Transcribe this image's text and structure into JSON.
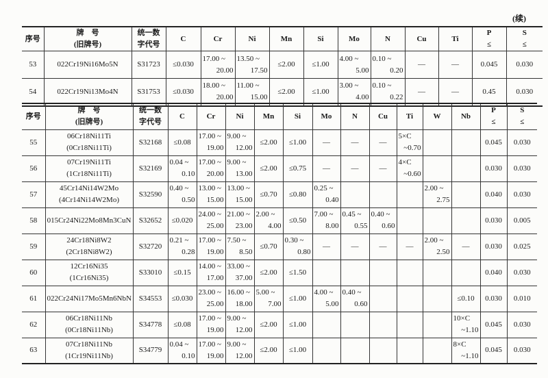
{
  "continued_label": "(续)",
  "table1": {
    "headers": [
      "序号",
      [
        "牌　号",
        "(旧牌号)"
      ],
      [
        "统一数",
        "字代号"
      ],
      "C",
      "Cr",
      "Ni",
      "Mn",
      "Si",
      "Mo",
      "N",
      "Cu",
      "Ti",
      [
        "P",
        "≤"
      ],
      [
        "S",
        "≤"
      ]
    ],
    "rows": [
      [
        "53",
        "022Cr19Ni16Mo5N",
        "S31723",
        "≤0.030",
        [
          "17.00 ~",
          "20.00"
        ],
        [
          "13.50 ~",
          "17.50"
        ],
        "≤2.00",
        "≤1.00",
        [
          "4.00 ~",
          "5.00"
        ],
        [
          "0.10 ~",
          "0.20"
        ],
        "—",
        "—",
        "0.045",
        "0.030"
      ],
      [
        "54",
        "022Cr19Ni13Mo4N",
        "S31753",
        "≤0.030",
        [
          "18.00 ~",
          "20.00"
        ],
        [
          "11.00 ~",
          "15.00"
        ],
        "≤2.00",
        "≤1.00",
        [
          "3.00 ~",
          "4.00"
        ],
        [
          "0.10 ~",
          "0.22"
        ],
        "—",
        "—",
        "0.45",
        "0.030"
      ]
    ]
  },
  "table2": {
    "headers": [
      "序号",
      [
        "牌　号",
        "(旧牌号)"
      ],
      [
        "统一数",
        "字代号"
      ],
      "C",
      "Cr",
      "Ni",
      "Mn",
      "Si",
      "Mo",
      "N",
      "Cu",
      "Ti",
      "W",
      "Nb",
      [
        "P",
        "≤"
      ],
      [
        "S",
        "≤"
      ]
    ],
    "rows": [
      [
        "55",
        [
          "06Cr18Ni11Ti",
          "(0Cr18Ni11Ti)"
        ],
        "S32168",
        "≤0.08",
        [
          "17.00 ~",
          "19.00"
        ],
        [
          "9.00 ~",
          "12.00"
        ],
        "≤2.00",
        "≤1.00",
        "—",
        "—",
        "—",
        [
          "5×C",
          "~0.70"
        ],
        "",
        "",
        "0.045",
        "0.030"
      ],
      [
        "56",
        [
          "07Cr19Ni11Ti",
          "(1Cr18Ni11Ti)"
        ],
        "S32169",
        [
          "0.04 ~",
          "0.10"
        ],
        [
          "17.00 ~",
          "20.00"
        ],
        [
          "9.00 ~",
          "13.00"
        ],
        "≤2.00",
        "≤0.75",
        "—",
        "—",
        "—",
        [
          "4×C",
          "~0.60"
        ],
        "",
        "",
        "0.030",
        "0.030"
      ],
      [
        "57",
        [
          "45Cr14Ni14W2Mo",
          "(4Cr14Ni14W2Mo)"
        ],
        "S32590",
        [
          "0.40 ~",
          "0.50"
        ],
        [
          "13.00 ~",
          "15.00"
        ],
        [
          "13.00 ~",
          "15.00"
        ],
        "≤0.70",
        "≤0.80",
        [
          "0.25 ~",
          "0.40"
        ],
        "",
        "",
        "",
        [
          "2.00 ~",
          "2.75"
        ],
        "",
        "0.040",
        "0.030"
      ],
      [
        "58",
        "015Cr24Ni22Mo8Mn3CuN",
        "S32652",
        "≤0.020",
        [
          "24.00 ~",
          "25.00"
        ],
        [
          "21.00 ~",
          "23.00"
        ],
        [
          "2.00 ~",
          "4.00"
        ],
        "≤0.50",
        [
          "7.00 ~",
          "8.00"
        ],
        [
          "0.45 ~",
          "0.55"
        ],
        [
          "0.40 ~",
          "0.60"
        ],
        "",
        "",
        "",
        "0.030",
        "0.005"
      ],
      [
        "59",
        [
          "24Cr18Ni8W2",
          "(2Cr18Ni8W2)"
        ],
        "S32720",
        [
          "0.21 ~",
          "0.28"
        ],
        [
          "17.00 ~",
          "19.00"
        ],
        [
          "7.50 ~",
          "8.50"
        ],
        "≤0.70",
        [
          "0.30 ~",
          "0.80"
        ],
        "—",
        "—",
        "—",
        "—",
        [
          "2.00 ~",
          "2.50"
        ],
        "—",
        "0.030",
        "0.025"
      ],
      [
        "60",
        [
          "12Cr16Ni35",
          "(1Cr16Ni35)"
        ],
        "S33010",
        "≤0.15",
        [
          "14.00 ~",
          "17.00"
        ],
        [
          "33.00 ~",
          "37.00"
        ],
        "≤2.00",
        "≤1.50",
        "",
        "",
        "",
        "",
        "",
        "",
        "0.040",
        "0.030"
      ],
      [
        "61",
        "022Cr24Ni17Mo5Mn6NbN",
        "S34553",
        "≤0.030",
        [
          "23.00 ~",
          "25.00"
        ],
        [
          "16.00 ~",
          "18.00"
        ],
        [
          "5.00 ~",
          "7.00"
        ],
        "≤1.00",
        [
          "4.00 ~",
          "5.00"
        ],
        [
          "0.40 ~",
          "0.60"
        ],
        "",
        "",
        "",
        "≤0.10",
        "0.030",
        "0.010"
      ],
      [
        "62",
        [
          "06Cr18Ni11Nb",
          "(0Cr18Ni11Nb)"
        ],
        "S34778",
        "≤0.08",
        [
          "17.00 ~",
          "19.00"
        ],
        [
          "9.00 ~",
          "12.00"
        ],
        "≤2.00",
        "≤1.00",
        "",
        "",
        "",
        "",
        "",
        [
          "10×C",
          "~1.10"
        ],
        "0.045",
        "0.030"
      ],
      [
        "63",
        [
          "07Cr18Ni11Nb",
          "(1Cr19Ni11Nb)"
        ],
        "S34779",
        [
          "0.04 ~",
          "0.10"
        ],
        [
          "17.00 ~",
          "19.00"
        ],
        [
          "9.00 ~",
          "12.00"
        ],
        "≤2.00",
        "≤1.00",
        "",
        "",
        "",
        "",
        "",
        [
          "8×C",
          "~1.10"
        ],
        "0.045",
        "0.030"
      ]
    ]
  }
}
